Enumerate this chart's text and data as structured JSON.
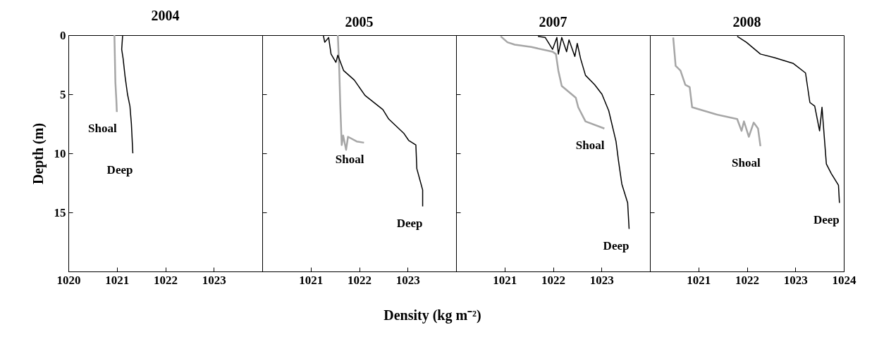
{
  "chart_data": [
    {
      "type": "line",
      "title": "2004",
      "ylabel": "Depth (m)",
      "xlim": [
        1020,
        1024
      ],
      "xticks": [
        1020,
        1021,
        1022,
        1023
      ],
      "ylim": [
        20,
        0
      ],
      "yticks": [
        0,
        5,
        10,
        15
      ],
      "grid": false,
      "series": [
        {
          "name": "Shoal",
          "color": "#a6a6a6",
          "x": [
            1020.95,
            1020.96,
            1020.97,
            1020.99,
            1021.0
          ],
          "values": [
            0,
            2,
            4,
            5.5,
            6.5
          ]
        },
        {
          "name": "Deep",
          "color": "#000000",
          "x": [
            1021.12,
            1021.1,
            1021.13,
            1021.17,
            1021.22,
            1021.27,
            1021.3,
            1021.33
          ],
          "values": [
            0,
            1.2,
            2,
            3.5,
            5,
            6,
            7.5,
            10
          ]
        }
      ]
    },
    {
      "type": "line",
      "title": "2005",
      "xlabel": "Density (kg m⁻²)",
      "xlim": [
        1020,
        1024
      ],
      "xticks": [
        1021,
        1022,
        1023
      ],
      "ylim": [
        20,
        0
      ],
      "yticks": [
        0,
        5,
        10,
        15
      ],
      "grid": false,
      "tick_labels": "x",
      "series": [
        {
          "name": "Shoal",
          "color": "#a6a6a6",
          "x": [
            1021.56,
            1021.59,
            1021.61,
            1021.64,
            1021.67,
            1021.73,
            1021.77,
            1021.95,
            1022.1
          ],
          "values": [
            0,
            3.0,
            5.9,
            9.3,
            8.5,
            9.7,
            8.6,
            9.0,
            9.1
          ]
        },
        {
          "name": "Deep",
          "color": "#000000",
          "x": [
            1021.26,
            1021.29,
            1021.37,
            1021.42,
            1021.52,
            1021.56,
            1021.68,
            1021.9,
            1022.12,
            1022.49,
            1022.61,
            1022.92,
            1023.02,
            1023.17,
            1023.19,
            1023.31,
            1023.31
          ],
          "values": [
            0,
            0.6,
            0.2,
            1.6,
            2.3,
            1.7,
            3.0,
            3.8,
            5.1,
            6.3,
            7.1,
            8.3,
            8.9,
            9.3,
            11.3,
            13.1,
            14.5
          ]
        }
      ]
    },
    {
      "type": "line",
      "title": "2007",
      "xlim": [
        1020,
        1024
      ],
      "xticks": [
        1021,
        1022,
        1023
      ],
      "ylim": [
        20,
        0
      ],
      "yticks": [
        0,
        5,
        10,
        15
      ],
      "grid": false,
      "tick_labels": "x",
      "series": [
        {
          "name": "Shoal",
          "color": "#a6a6a6",
          "x": [
            1020.92,
            1021.06,
            1021.21,
            1021.55,
            1021.99,
            1022.06,
            1022.11,
            1022.18,
            1022.47,
            1022.52,
            1022.67,
            1023.06
          ],
          "values": [
            0.1,
            0.6,
            0.8,
            1.0,
            1.4,
            1.6,
            3.0,
            4.3,
            5.3,
            6.1,
            7.3,
            7.9
          ]
        },
        {
          "name": "Deep",
          "color": "#000000",
          "x": [
            1021.69,
            1021.84,
            1021.99,
            1022.08,
            1022.11,
            1022.18,
            1022.28,
            1022.33,
            1022.45,
            1022.5,
            1022.57,
            1022.67,
            1022.86,
            1023.01,
            1023.15,
            1023.3,
            1023.35,
            1023.42,
            1023.54,
            1023.57
          ],
          "values": [
            0.1,
            0.2,
            1.2,
            0.2,
            1.6,
            0.2,
            1.4,
            0.4,
            1.8,
            0.7,
            2.0,
            3.4,
            4.2,
            5.0,
            6.4,
            9.0,
            10.6,
            12.6,
            14.2,
            16.4
          ]
        }
      ]
    },
    {
      "type": "line",
      "title": "2008",
      "xlim": [
        1020,
        1024
      ],
      "xticks": [
        1021,
        1022,
        1023,
        1024
      ],
      "ylim": [
        20,
        0
      ],
      "yticks": [
        0,
        5,
        10,
        15
      ],
      "grid": false,
      "tick_labels": "x",
      "series": [
        {
          "name": "Shoal",
          "color": "#a6a6a6",
          "x": [
            1020.48,
            1020.53,
            1020.63,
            1020.73,
            1020.82,
            1020.87,
            1021.36,
            1021.8,
            1021.89,
            1021.94,
            1022.04,
            1022.14,
            1022.23,
            1022.28
          ],
          "values": [
            0.2,
            2.6,
            3.0,
            4.2,
            4.4,
            6.1,
            6.7,
            7.1,
            8.1,
            7.3,
            8.6,
            7.4,
            7.9,
            9.4
          ]
        },
        {
          "name": "Deep",
          "color": "#000000",
          "x": [
            1021.8,
            1021.99,
            1022.28,
            1022.57,
            1022.96,
            1023.21,
            1023.3,
            1023.4,
            1023.5,
            1023.55,
            1023.64,
            1023.74,
            1023.89,
            1023.91
          ],
          "values": [
            0.1,
            0.6,
            1.6,
            1.9,
            2.4,
            3.2,
            5.7,
            6.0,
            8.1,
            6.1,
            10.9,
            11.7,
            12.7,
            14.2
          ]
        }
      ]
    }
  ]
}
